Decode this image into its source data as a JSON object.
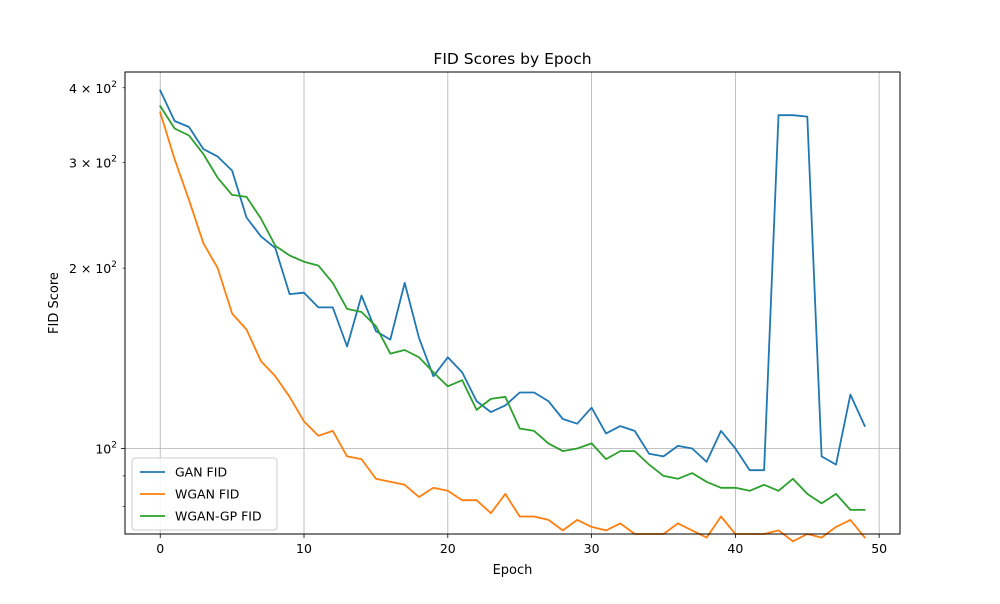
{
  "chart_data": {
    "type": "line",
    "title": "FID Scores by Epoch",
    "xlabel": "Epoch",
    "ylabel": "FID Score",
    "xlim": [
      -2.45,
      51.45
    ],
    "ylim": [
      72,
      425
    ],
    "yscale": "log",
    "grid": true,
    "legend_position": "lower-left",
    "x": [
      0,
      1,
      2,
      3,
      4,
      5,
      6,
      7,
      8,
      9,
      10,
      11,
      12,
      13,
      14,
      15,
      16,
      17,
      18,
      19,
      20,
      21,
      22,
      23,
      24,
      25,
      26,
      27,
      28,
      29,
      30,
      31,
      32,
      33,
      34,
      35,
      36,
      37,
      38,
      39,
      40,
      41,
      42,
      43,
      44,
      45,
      46,
      47,
      48,
      49
    ],
    "x_ticks": [
      {
        "value": 0,
        "label": "0"
      },
      {
        "value": 10,
        "label": "10"
      },
      {
        "value": 20,
        "label": "20"
      },
      {
        "value": 30,
        "label": "30"
      },
      {
        "value": 40,
        "label": "40"
      },
      {
        "value": 50,
        "label": "50"
      }
    ],
    "y_major_ticks": [
      {
        "value": 100,
        "base": "10",
        "exp": "2"
      }
    ],
    "y_minor_ticks": [
      {
        "value": 200,
        "coef": "2",
        "base": "10",
        "exp": "2"
      },
      {
        "value": 300,
        "coef": "3",
        "base": "10",
        "exp": "2"
      },
      {
        "value": 400,
        "coef": "4",
        "base": "10",
        "exp": "2"
      }
    ],
    "y_unlabeled_minor_ticks": [
      80,
      90
    ],
    "series": [
      {
        "name": "GAN FID",
        "color": "#1f77b4",
        "values": [
          396,
          352,
          344,
          316,
          307,
          291,
          243,
          226,
          216,
          181,
          182,
          172,
          172,
          148,
          180,
          157,
          152,
          189,
          153,
          132,
          142,
          134,
          120,
          115,
          118,
          124,
          124,
          120,
          112,
          110,
          117,
          106,
          109,
          107,
          98,
          97,
          101,
          100,
          95,
          107,
          100,
          92,
          92,
          360,
          360,
          358,
          97,
          94,
          123,
          109
        ]
      },
      {
        "name": "WGAN FID",
        "color": "#ff7f0e",
        "values": [
          364,
          304,
          260,
          220,
          200,
          168,
          158,
          140,
          132,
          122,
          111,
          105,
          107,
          97,
          96,
          89,
          88,
          87,
          83,
          86,
          85,
          82,
          82,
          78,
          84,
          77,
          77,
          76,
          73,
          76,
          74,
          73,
          75,
          72,
          72,
          72,
          75,
          73,
          71,
          77,
          72,
          72,
          72,
          73,
          70,
          72,
          71,
          74,
          76,
          71
        ]
      },
      {
        "name": "WGAN-GP FID",
        "color": "#2ca02c",
        "values": [
          373,
          342,
          333,
          310,
          283,
          265,
          263,
          242,
          218,
          210,
          205,
          202,
          189,
          171,
          169,
          160,
          144,
          146,
          142,
          134,
          127,
          130,
          116,
          121,
          122,
          108,
          107,
          102,
          99,
          100,
          102,
          96,
          99,
          99,
          94,
          90,
          89,
          91,
          88,
          86,
          86,
          85,
          87,
          85,
          89,
          84,
          81,
          84,
          79,
          79
        ]
      }
    ]
  }
}
